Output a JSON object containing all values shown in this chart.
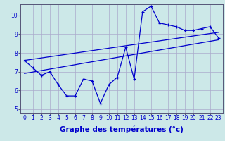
{
  "xlabel": "Graphe des températures (°c)",
  "background_color": "#cce8e8",
  "grid_color": "#aaaacc",
  "line_color": "#0000cc",
  "x_hours": [
    0,
    1,
    2,
    3,
    4,
    5,
    6,
    7,
    8,
    9,
    10,
    11,
    12,
    13,
    14,
    15,
    16,
    17,
    18,
    19,
    20,
    21,
    22,
    23
  ],
  "temp_line": [
    7.6,
    7.2,
    6.8,
    7.0,
    6.3,
    5.7,
    5.7,
    6.6,
    6.5,
    5.3,
    6.3,
    6.7,
    8.3,
    6.6,
    10.2,
    10.5,
    9.6,
    9.5,
    9.4,
    9.2,
    9.2,
    9.3,
    9.4,
    8.8
  ],
  "trend1_x": [
    0,
    23
  ],
  "trend1_y": [
    6.9,
    8.7
  ],
  "trend2_x": [
    0,
    23
  ],
  "trend2_y": [
    7.6,
    9.1
  ],
  "ylim": [
    4.8,
    10.6
  ],
  "xlim": [
    -0.5,
    23.5
  ],
  "yticks": [
    5,
    6,
    7,
    8,
    9,
    10
  ],
  "xticks": [
    0,
    1,
    2,
    3,
    4,
    5,
    6,
    7,
    8,
    9,
    10,
    11,
    12,
    13,
    14,
    15,
    16,
    17,
    18,
    19,
    20,
    21,
    22,
    23
  ],
  "tick_fontsize": 5.5,
  "xlabel_fontsize": 7.5
}
